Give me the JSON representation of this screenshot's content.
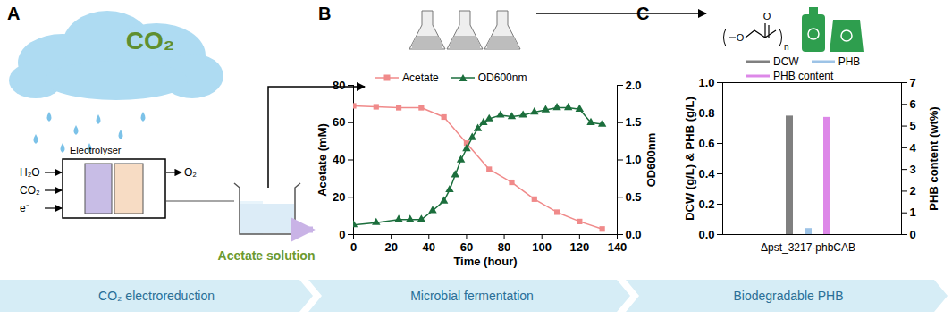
{
  "diagram": {
    "panel_labels": [
      "A",
      "B",
      "C"
    ],
    "cloud_text": "CO₂",
    "electrolyser": "Electrolyser",
    "inputs": [
      "H₂O",
      "CO₂",
      "e⁻"
    ],
    "output": "O₂",
    "product": "Acetate solution",
    "polymer_atoms": [
      "O",
      "O"
    ],
    "polymer_repeat": "n",
    "stages": [
      "CO₂ electroreduction",
      "Microbial fermentation",
      "Biodegradable PHB"
    ]
  },
  "chart_data": [
    {
      "type": "line",
      "x_label": "Time (hour)",
      "y_label": "Acetate (mM)",
      "y2_label": "OD600nm",
      "xlim": [
        0,
        140
      ],
      "xticks": [
        0,
        20,
        40,
        60,
        80,
        100,
        120,
        140
      ],
      "ylim": [
        0,
        80
      ],
      "yticks": [
        0,
        20,
        40,
        60,
        80
      ],
      "y2lim": [
        0,
        2
      ],
      "y2ticks": [
        {
          "value": 0,
          "label": "0.0"
        },
        0.5,
        {
          "value": 1,
          "label": "1.0"
        },
        1.5,
        {
          "value": 2,
          "label": "2.0"
        }
      ],
      "legend": "top",
      "series": [
        {
          "name": "Acetate",
          "color": "#f08a8a",
          "marker": "square",
          "x": [
            0,
            12,
            24,
            36,
            48,
            60,
            72,
            84,
            96,
            108,
            120,
            132
          ],
          "values": [
            69,
            68.5,
            68,
            68,
            63,
            49,
            35,
            28,
            19,
            12,
            7,
            3
          ]
        },
        {
          "name": "OD600nm",
          "color": "#1b6e3c",
          "marker": "triangle",
          "axis": "y2",
          "x": [
            0,
            12,
            24,
            30,
            36,
            42,
            48,
            51,
            54,
            57,
            60,
            63,
            66,
            69,
            72,
            78,
            84,
            90,
            96,
            102,
            108,
            114,
            120,
            126,
            132
          ],
          "values": [
            0.13,
            0.16,
            0.2,
            0.2,
            0.2,
            0.32,
            0.45,
            0.6,
            0.8,
            1.0,
            1.15,
            1.3,
            1.42,
            1.5,
            1.55,
            1.6,
            1.58,
            1.6,
            1.64,
            1.67,
            1.7,
            1.7,
            1.68,
            1.5,
            1.48
          ]
        }
      ]
    },
    {
      "type": "bar",
      "categories": [
        "Δpst_3217-phbCAB"
      ],
      "y_label": "DCW (g/L) & PHB (g/L)",
      "y2_label": "PHB content (wt%)",
      "ylim": [
        0,
        1
      ],
      "yticks": [
        {
          "value": 0,
          "label": "0.0"
        },
        0.2,
        0.4,
        0.6,
        0.8,
        {
          "value": 1,
          "label": "1.0"
        }
      ],
      "y2lim": [
        0,
        7
      ],
      "y2ticks": [
        0,
        1,
        2,
        3,
        4,
        5,
        6,
        7
      ],
      "legend": "top",
      "series": [
        {
          "name": "DCW",
          "color": "#808080",
          "values": [
            0.78
          ]
        },
        {
          "name": "PHB",
          "color": "#9dc3e6",
          "values": [
            0.04
          ]
        },
        {
          "name": "PHB content",
          "color": "#dd88e8",
          "values": [
            5.4
          ],
          "axis": "y2"
        }
      ]
    }
  ]
}
